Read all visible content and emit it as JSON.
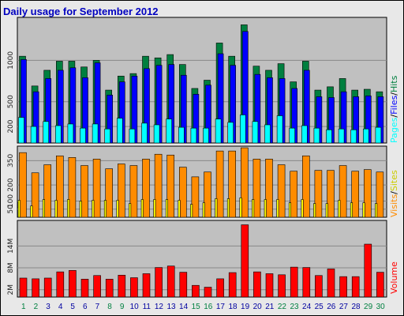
{
  "title": "Daily usage for September 2012",
  "colors": {
    "hits": "#007f3f",
    "files": "#0000ff",
    "pages": "#00ffff",
    "visits": "#ff8c00",
    "sites": "#ffff00",
    "volume": "#ff0000",
    "weekday_label": "#0000a0",
    "weekend_label": "#008040",
    "panel_bg": "#c0c0c0"
  },
  "legends": {
    "top": {
      "pages": "Pages",
      "files": "Files",
      "hits": "Hits",
      "sep": "/"
    },
    "mid": {
      "visits": "Visits",
      "sites": "Sites",
      "sep": "/"
    },
    "bot": {
      "volume": "Volume"
    }
  },
  "chart_data": [
    {
      "type": "bar",
      "panel": "hits-files-pages",
      "categories": [
        "1",
        "2",
        "3",
        "4",
        "5",
        "6",
        "7",
        "8",
        "9",
        "10",
        "11",
        "12",
        "13",
        "14",
        "15",
        "16",
        "17",
        "18",
        "19",
        "20",
        "21",
        "22",
        "23",
        "24",
        "25",
        "26",
        "27",
        "28",
        "29",
        "30"
      ],
      "weekend": [
        "1",
        "2",
        "8",
        "9",
        "15",
        "16",
        "22",
        "23",
        "29",
        "30"
      ],
      "yticks": [
        "200",
        "500",
        "1000"
      ],
      "ylim": [
        0,
        1520
      ],
      "series": [
        {
          "name": "Hits",
          "values": [
            1050,
            690,
            880,
            990,
            990,
            920,
            1000,
            640,
            810,
            840,
            1050,
            1030,
            1070,
            950,
            660,
            760,
            1210,
            1050,
            1430,
            930,
            880,
            960,
            740,
            990,
            640,
            680,
            780,
            640,
            650,
            620
          ]
        },
        {
          "name": "Files",
          "values": [
            1010,
            620,
            780,
            880,
            910,
            790,
            970,
            580,
            740,
            810,
            900,
            940,
            950,
            820,
            590,
            700,
            1080,
            940,
            1350,
            830,
            790,
            780,
            660,
            880,
            560,
            550,
            620,
            560,
            570,
            560
          ]
        },
        {
          "name": "Pages",
          "values": [
            310,
            200,
            260,
            210,
            230,
            180,
            230,
            170,
            300,
            170,
            240,
            220,
            290,
            190,
            180,
            180,
            290,
            250,
            340,
            260,
            220,
            330,
            180,
            210,
            180,
            160,
            170,
            160,
            170,
            190
          ]
        }
      ]
    },
    {
      "type": "bar",
      "panel": "visits-sites",
      "categories": [
        "1",
        "2",
        "3",
        "4",
        "5",
        "6",
        "7",
        "8",
        "9",
        "10",
        "11",
        "12",
        "13",
        "14",
        "15",
        "16",
        "17",
        "18",
        "19",
        "20",
        "21",
        "22",
        "23",
        "24",
        "25",
        "26",
        "27",
        "28",
        "29",
        "30"
      ],
      "yticks": [
        "50",
        "100",
        "200",
        "350"
      ],
      "ylim": [
        0,
        440
      ],
      "series": [
        {
          "name": "Visits",
          "values": [
            400,
            275,
            325,
            380,
            370,
            320,
            360,
            300,
            330,
            320,
            360,
            390,
            385,
            310,
            250,
            280,
            410,
            410,
            430,
            360,
            360,
            325,
            285,
            380,
            290,
            290,
            320,
            285,
            295,
            280
          ]
        },
        {
          "name": "Sites",
          "values": [
            105,
            70,
            110,
            105,
            110,
            100,
            105,
            105,
            105,
            85,
            110,
            110,
            110,
            105,
            80,
            90,
            115,
            115,
            120,
            110,
            110,
            110,
            90,
            110,
            85,
            85,
            105,
            90,
            90,
            85
          ]
        }
      ]
    },
    {
      "type": "bar",
      "panel": "volume",
      "categories": [
        "1",
        "2",
        "3",
        "4",
        "5",
        "6",
        "7",
        "8",
        "9",
        "10",
        "11",
        "12",
        "13",
        "14",
        "15",
        "16",
        "17",
        "18",
        "19",
        "20",
        "21",
        "22",
        "23",
        "24",
        "25",
        "26",
        "27",
        "28",
        "29",
        "30"
      ],
      "yticks": [
        "2M",
        "8M",
        "14M"
      ],
      "ylim": [
        0,
        21
      ],
      "series": [
        {
          "name": "Volume",
          "values": [
            5.2,
            5.0,
            5.2,
            6.9,
            7.3,
            4.9,
            5.9,
            4.9,
            6.0,
            5.3,
            6.4,
            8.1,
            8.5,
            6.8,
            3.2,
            2.7,
            5.0,
            6.7,
            19.8,
            6.9,
            6.4,
            6.1,
            8.2,
            8.1,
            5.9,
            7.7,
            5.6,
            5.6,
            14.5,
            6.8
          ]
        }
      ]
    }
  ]
}
